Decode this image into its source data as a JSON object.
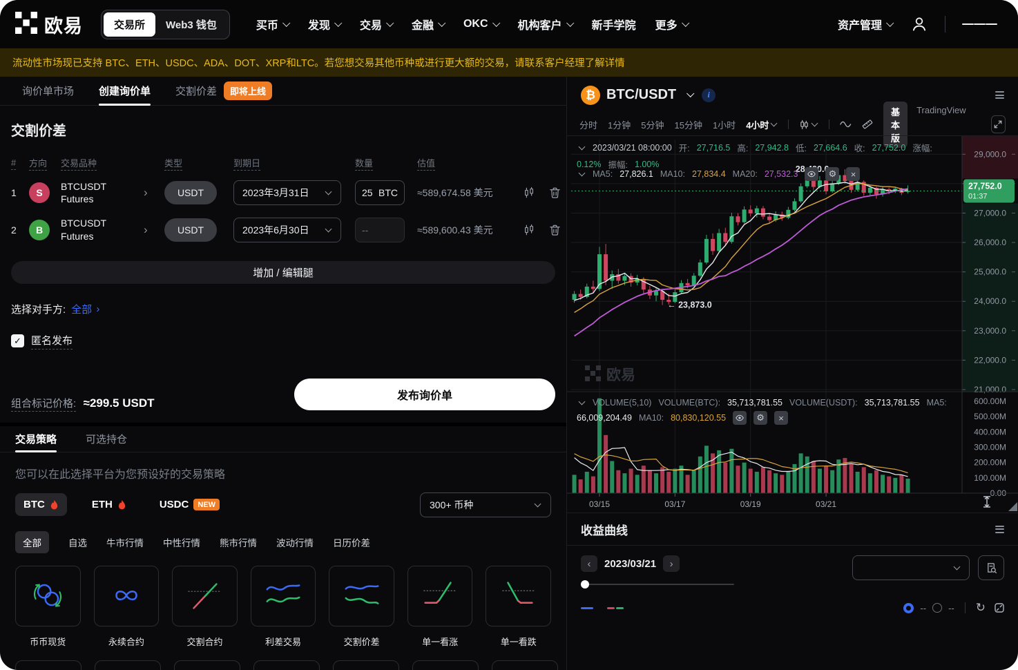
{
  "nav": {
    "brand": "欧易",
    "toggle": [
      {
        "label": "交易所",
        "active": true
      },
      {
        "label": "Web3 钱包",
        "active": false
      }
    ],
    "items": [
      {
        "key": "buy-crypto",
        "label": "买币",
        "chev": true
      },
      {
        "key": "discover",
        "label": "发现",
        "chev": true
      },
      {
        "key": "trade",
        "label": "交易",
        "chev": true
      },
      {
        "key": "finance",
        "label": "金融",
        "chev": true
      },
      {
        "key": "okc",
        "label": "OKC",
        "chev": true
      },
      {
        "key": "institutions",
        "label": "机构客户",
        "chev": true
      },
      {
        "key": "academy",
        "label": "新手学院",
        "chev": false
      },
      {
        "key": "more",
        "label": "更多",
        "chev": true
      }
    ],
    "assets": "资产管理"
  },
  "notice": {
    "text": "流动性市场现已支持 BTC、ETH、USDC、ADA、DOT、XRP和LTC。若您想交易其他币种或进行更大额的交易，请联系客户经理了解详情"
  },
  "rfq": {
    "tabs": [
      {
        "label": "询价单市场",
        "active": false
      },
      {
        "label": "创建询价单",
        "active": true
      },
      {
        "label": "交割价差",
        "active": false,
        "badge": true
      }
    ],
    "badge": "即将上线",
    "title": "交割价差",
    "table": {
      "headers": {
        "idx": "#",
        "side": "方向",
        "name": "交易品种",
        "type": "类型",
        "expiry": "到期日",
        "qty": "数量",
        "value": "估值"
      },
      "rows": [
        {
          "num": "1",
          "letter": "S",
          "side": "sell",
          "name1": "BTCUSDT",
          "name2": "Futures",
          "type": "USDT",
          "expiry": "2023年3月31日",
          "qty": "25",
          "unit": "BTC",
          "value": "≈589,674.58 美元",
          "disabled": false
        },
        {
          "num": "2",
          "letter": "B",
          "side": "buy",
          "name1": "BTCUSDT",
          "name2": "Futures",
          "type": "USDT",
          "expiry": "2023年6月30日",
          "qty": "--",
          "unit": "",
          "value": "≈589,600.43 美元",
          "disabled": true
        }
      ]
    },
    "add_leg": "增加 / 编辑腿",
    "counterparty_label": "选择对手方:",
    "counterparty_value": "全部",
    "anonymous_label": "匿名发布",
    "anonymous_checked": true,
    "mark_price_label": "组合标记价格:",
    "mark_price_value": "≈299.5 USDT",
    "publish": "发布询价单"
  },
  "strategies": {
    "tabs": [
      {
        "label": "交易策略",
        "active": true
      },
      {
        "label": "可选持仓",
        "active": false
      }
    ],
    "desc": "您可以在此选择平台为您预设好的交易策略",
    "coins": [
      {
        "label": "BTC",
        "flame": true,
        "active": true
      },
      {
        "label": "ETH",
        "flame": true,
        "active": false
      },
      {
        "label": "USDC",
        "flame": false,
        "active": false,
        "new": true
      }
    ],
    "new_badge": "NEW",
    "coin_dropdown": "300+ 币种",
    "filters": [
      {
        "label": "全部",
        "active": true
      },
      {
        "label": "自选",
        "active": false
      },
      {
        "label": "牛市行情",
        "active": false
      },
      {
        "label": "中性行情",
        "active": false
      },
      {
        "label": "熊市行情",
        "active": false
      },
      {
        "label": "波动行情",
        "active": false
      },
      {
        "label": "日历价差",
        "active": false
      }
    ],
    "cards": [
      {
        "label": "币币现货",
        "icon": "spot"
      },
      {
        "label": "永续合约",
        "icon": "perpetual"
      },
      {
        "label": "交割合约",
        "icon": "futures"
      },
      {
        "label": "利差交易",
        "icon": "carry"
      },
      {
        "label": "交割价差",
        "icon": "spread"
      },
      {
        "label": "单一看涨",
        "icon": "call"
      },
      {
        "label": "单一看跌",
        "icon": "put"
      }
    ]
  },
  "chart": {
    "pair": "BTC/USDT",
    "timeframes": [
      {
        "label": "分时",
        "active": false
      },
      {
        "label": "1分钟",
        "active": false
      },
      {
        "label": "5分钟",
        "active": false
      },
      {
        "label": "15分钟",
        "active": false
      },
      {
        "label": "1小时",
        "active": false
      },
      {
        "label": "4小时",
        "active": true
      }
    ],
    "modes": [
      {
        "label": "基本版",
        "active": true
      },
      {
        "label": "TradingView",
        "active": false
      }
    ],
    "ohlc_segments": [
      [
        "2023/03/21 08:00:00",
        "text"
      ],
      [
        "开:",
        "label"
      ],
      [
        "27,716.5",
        "up"
      ],
      [
        "高:",
        "label"
      ],
      [
        "27,942.8",
        "up"
      ],
      [
        "低:",
        "label"
      ],
      [
        "27,664.6",
        "up"
      ],
      [
        "收:",
        "label"
      ],
      [
        "27,752.0",
        "up"
      ],
      [
        "涨幅:",
        "label"
      ],
      [
        "0.12%",
        "up"
      ],
      [
        "振幅:",
        "label"
      ],
      [
        "1.00%",
        "up"
      ]
    ],
    "ma_segments": [
      [
        "MA5:",
        "label"
      ],
      [
        "27,826.1",
        "white"
      ],
      [
        "MA10:",
        "label"
      ],
      [
        "27,834.4",
        "ma10"
      ],
      [
        "MA20:",
        "label"
      ],
      [
        "27,532.3",
        "ma20"
      ]
    ],
    "vol_segments": [
      [
        "VOLUME(5,10)",
        "label"
      ],
      [
        "VOLUME(BTC):",
        "label"
      ],
      [
        "35,713,781.55",
        "white"
      ],
      [
        "VOLUME(USDT):",
        "label"
      ],
      [
        "35,713,781.55",
        "white"
      ],
      [
        "MA5:",
        "label"
      ],
      [
        "66,009,204.49",
        "white"
      ],
      [
        "MA10:",
        "label"
      ],
      [
        "80,830,120.55",
        "ma10"
      ]
    ]
  },
  "pnl": {
    "title": "收益曲线",
    "date": "2023/03/21",
    "radio1": "--",
    "radio2": "--"
  },
  "chart_data": {
    "type": "candlestick",
    "symbol": "BTC/USDT",
    "interval": "4小时",
    "ylim": [
      21000,
      29500
    ],
    "vol_ylim": [
      0,
      650
    ],
    "slots": 62,
    "price_ticks": [
      {
        "v": 29000,
        "label": "29,000.0"
      },
      {
        "v": 28000,
        "label": "28,000.0"
      },
      {
        "v": 27000,
        "label": "27,000.0"
      },
      {
        "v": 26000,
        "label": "26,000.0"
      },
      {
        "v": 25000,
        "label": "25,000.0"
      },
      {
        "v": 24000,
        "label": "24,000.0"
      },
      {
        "v": 23000,
        "label": "23,000.0"
      },
      {
        "v": 22000,
        "label": "22,000.0"
      },
      {
        "v": 21000,
        "label": "21,000.0"
      }
    ],
    "vol_ticks": [
      {
        "v": 600,
        "label": "600.00M"
      },
      {
        "v": 500,
        "label": "500.00M"
      },
      {
        "v": 400,
        "label": "400.00M"
      },
      {
        "v": 300,
        "label": "300.00M"
      },
      {
        "v": 200,
        "label": "200.00M"
      },
      {
        "v": 100,
        "label": "100.00M"
      },
      {
        "v": 0,
        "label": "0.00"
      }
    ],
    "x_ticks": [
      {
        "idx": 4,
        "label": "03/15"
      },
      {
        "idx": 16,
        "label": "03/17"
      },
      {
        "idx": 28,
        "label": "03/19"
      },
      {
        "idx": 40,
        "label": "03/21"
      }
    ],
    "last_price": {
      "value": 27752.0,
      "label": "27,752.0",
      "time": "01:37"
    },
    "annotations": [
      {
        "text": "28,490.0 →",
        "idx": 43,
        "price": 28490,
        "anchor": "end"
      },
      {
        "text": "← 23,873.0",
        "idx": 14,
        "price": 23873,
        "anchor": "start"
      }
    ],
    "colors": {
      "up": "#2ead70",
      "down": "#d0455f",
      "ma5": "#e8eaed",
      "ma10": "#d9a43c",
      "ma20": "#c05bd8",
      "last_tag": "#2f9e5f"
    },
    "watermark": "欧易",
    "ma_seed_closes": [
      21200,
      21350,
      21500,
      21650,
      21800,
      21950,
      22100,
      22250,
      22400,
      22550,
      22700,
      22850,
      23000,
      23200,
      23400,
      23600,
      23800,
      23950,
      24050,
      24100
    ],
    "vol_seed": [
      320,
      300,
      280,
      260,
      300,
      280,
      260,
      240,
      260,
      280
    ],
    "ohlcv": [
      [
        24050,
        24350,
        23950,
        24250,
        120
      ],
      [
        24250,
        24400,
        24050,
        24150,
        90
      ],
      [
        24150,
        24600,
        24100,
        24500,
        140
      ],
      [
        24500,
        24700,
        24300,
        24420,
        110
      ],
      [
        24420,
        25850,
        24350,
        25600,
        620
      ],
      [
        25600,
        25950,
        24550,
        24700,
        380
      ],
      [
        24700,
        25050,
        24420,
        24920,
        210
      ],
      [
        24920,
        25100,
        24600,
        24700,
        150
      ],
      [
        24700,
        24960,
        24550,
        24860,
        130
      ],
      [
        24860,
        24950,
        24500,
        24640,
        160
      ],
      [
        24640,
        24900,
        24540,
        24760,
        120
      ],
      [
        24760,
        24820,
        24250,
        24400,
        180
      ],
      [
        24400,
        24520,
        24080,
        24200,
        150
      ],
      [
        24200,
        24450,
        24000,
        24350,
        130
      ],
      [
        24350,
        24420,
        23873,
        24050,
        170
      ],
      [
        24050,
        24260,
        23890,
        23980,
        140
      ],
      [
        23980,
        24400,
        23940,
        24310,
        160
      ],
      [
        24310,
        24720,
        24260,
        24620,
        180
      ],
      [
        24620,
        24760,
        24440,
        24540,
        120
      ],
      [
        24540,
        24960,
        24500,
        24870,
        150
      ],
      [
        24870,
        25420,
        24820,
        25320,
        240
      ],
      [
        25320,
        26260,
        25260,
        26120,
        310
      ],
      [
        26120,
        26310,
        25580,
        25710,
        260
      ],
      [
        25710,
        26460,
        25640,
        26320,
        280
      ],
      [
        26320,
        26500,
        25890,
        26020,
        200
      ],
      [
        26020,
        27010,
        25960,
        26890,
        290
      ],
      [
        26890,
        27000,
        26580,
        26690,
        180
      ],
      [
        26690,
        27230,
        26640,
        27120,
        200
      ],
      [
        27120,
        27260,
        26890,
        26990,
        160
      ],
      [
        26990,
        27250,
        26850,
        27160,
        140
      ],
      [
        27160,
        27240,
        26790,
        26880,
        170
      ],
      [
        26880,
        27000,
        26640,
        26760,
        150
      ],
      [
        26760,
        27060,
        26700,
        26950,
        130
      ],
      [
        26950,
        27050,
        26740,
        26840,
        120
      ],
      [
        26840,
        27210,
        26790,
        27110,
        140
      ],
      [
        27110,
        27500,
        27060,
        27400,
        190
      ],
      [
        27400,
        28010,
        27350,
        27910,
        260
      ],
      [
        27910,
        28350,
        27850,
        28210,
        240
      ],
      [
        28210,
        28300,
        27790,
        27890,
        210
      ],
      [
        27890,
        28260,
        27840,
        28110,
        160
      ],
      [
        28110,
        28190,
        27640,
        27740,
        180
      ],
      [
        27740,
        28110,
        27690,
        28010,
        150
      ],
      [
        28010,
        28400,
        27950,
        28290,
        220
      ],
      [
        28290,
        28490,
        27990,
        28090,
        230
      ],
      [
        28090,
        28190,
        27690,
        27790,
        190
      ],
      [
        27790,
        28160,
        27740,
        28060,
        140
      ],
      [
        28060,
        28110,
        27590,
        27690,
        170
      ],
      [
        27690,
        27960,
        27610,
        27860,
        130
      ],
      [
        27860,
        27900,
        27490,
        27640,
        150
      ],
      [
        27640,
        27910,
        27560,
        27810,
        120
      ],
      [
        27810,
        27870,
        27640,
        27740,
        110
      ],
      [
        27740,
        27890,
        27680,
        27830,
        100
      ],
      [
        27830,
        27860,
        27610,
        27690,
        120
      ],
      [
        27716.5,
        27942.8,
        27664.6,
        27752.0,
        95
      ]
    ]
  }
}
